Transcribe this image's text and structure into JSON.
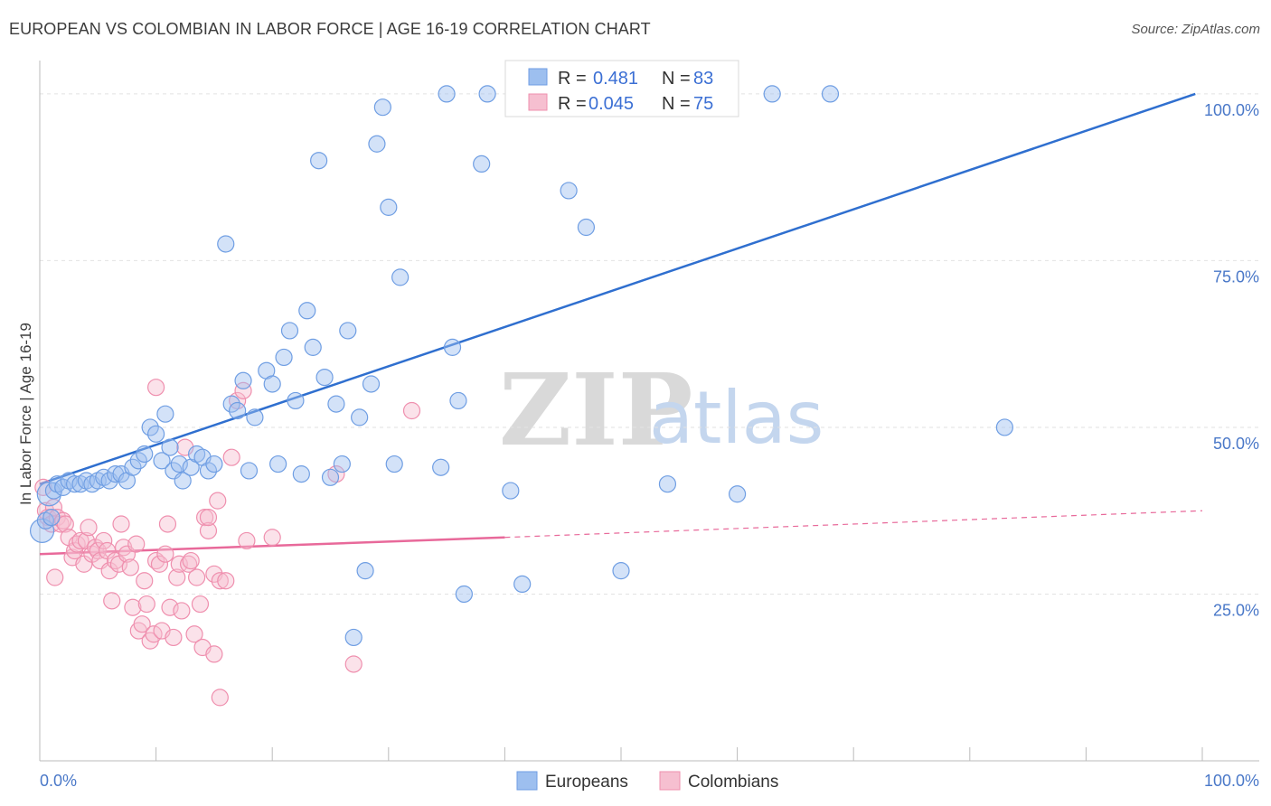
{
  "header": {
    "title": "EUROPEAN VS COLOMBIAN IN LABOR FORCE | AGE 16-19 CORRELATION CHART",
    "source": "Source: ZipAtlas.com"
  },
  "watermark": {
    "zip": "ZIP",
    "atlas": "atlas"
  },
  "colors": {
    "europeans_fill": "#9dbfef",
    "europeans_stroke": "#6f9ee3",
    "europeans_line": "#2f6fcf",
    "colombians_fill": "#f6bfd0",
    "colombians_stroke": "#ef8fae",
    "colombians_line": "#e8699a",
    "grid": "#e2e2e2",
    "axis": "#bbbbbb"
  },
  "stats": [
    {
      "r_label": "R =",
      "r_value": "0.481",
      "n_label": "N =",
      "n_value": "83"
    },
    {
      "r_label": "R =",
      "r_value": "0.045",
      "n_label": "N =",
      "n_value": "75"
    }
  ],
  "chart_data": {
    "type": "scatter",
    "title": "EUROPEAN VS COLOMBIAN IN LABOR FORCE | AGE 16-19 CORRELATION CHART",
    "xlabel": "",
    "ylabel": "In Labor Force | Age 16-19",
    "xlim": [
      0,
      100
    ],
    "ylim": [
      0,
      105
    ],
    "x_tick_labels": [
      "0.0%",
      "100.0%"
    ],
    "y_ticks": [
      25,
      50,
      75,
      100
    ],
    "y_tick_labels": [
      "25.0%",
      "50.0%",
      "75.0%",
      "100.0%"
    ],
    "legend": [
      "Europeans",
      "Colombians"
    ],
    "series": [
      {
        "name": "Europeans",
        "trend": {
          "x": [
            0,
            99.4
          ],
          "y": [
            41.5,
            100.0
          ]
        },
        "points": [
          [
            0.2,
            34.5
          ],
          [
            0.5,
            36.0
          ],
          [
            0.8,
            40.0
          ],
          [
            1.2,
            40.5
          ],
          [
            1.5,
            41.5
          ],
          [
            2.0,
            41.0
          ],
          [
            2.5,
            42.0
          ],
          [
            3.0,
            41.5
          ],
          [
            3.5,
            41.5
          ],
          [
            4.0,
            42.0
          ],
          [
            4.5,
            41.5
          ],
          [
            5.0,
            42.0
          ],
          [
            5.5,
            42.5
          ],
          [
            6.0,
            42.0
          ],
          [
            6.5,
            43.0
          ],
          [
            7.0,
            43.0
          ],
          [
            7.5,
            42.0
          ],
          [
            8.0,
            44.0
          ],
          [
            8.5,
            45.0
          ],
          [
            9.0,
            46.0
          ],
          [
            9.5,
            50.0
          ],
          [
            10.0,
            49.0
          ],
          [
            10.5,
            45.0
          ],
          [
            10.8,
            52.0
          ],
          [
            11.2,
            47.0
          ],
          [
            11.5,
            43.5
          ],
          [
            12.0,
            44.5
          ],
          [
            12.3,
            42.0
          ],
          [
            13.0,
            44.0
          ],
          [
            13.5,
            46.0
          ],
          [
            14.0,
            45.5
          ],
          [
            14.5,
            43.5
          ],
          [
            15.0,
            44.5
          ],
          [
            16.0,
            77.5
          ],
          [
            16.5,
            53.5
          ],
          [
            17.0,
            52.5
          ],
          [
            17.5,
            57.0
          ],
          [
            18.0,
            43.5
          ],
          [
            18.5,
            51.5
          ],
          [
            19.5,
            58.5
          ],
          [
            20.0,
            56.5
          ],
          [
            20.5,
            44.5
          ],
          [
            21.0,
            60.5
          ],
          [
            21.5,
            64.5
          ],
          [
            22.0,
            54.0
          ],
          [
            22.5,
            43.0
          ],
          [
            23.0,
            67.5
          ],
          [
            23.5,
            62.0
          ],
          [
            24.0,
            90.0
          ],
          [
            24.5,
            57.5
          ],
          [
            25.0,
            42.5
          ],
          [
            25.5,
            53.5
          ],
          [
            26.0,
            44.5
          ],
          [
            26.5,
            64.5
          ],
          [
            27.0,
            18.5
          ],
          [
            27.5,
            51.5
          ],
          [
            28.0,
            28.5
          ],
          [
            28.5,
            56.5
          ],
          [
            29.0,
            92.5
          ],
          [
            29.5,
            98.0
          ],
          [
            30.0,
            83.0
          ],
          [
            30.5,
            44.5
          ],
          [
            31.0,
            72.5
          ],
          [
            34.5,
            44.0
          ],
          [
            35.0,
            100.0
          ],
          [
            35.5,
            62.0
          ],
          [
            36.0,
            54.0
          ],
          [
            36.5,
            25.0
          ],
          [
            38.0,
            89.5
          ],
          [
            38.5,
            100.0
          ],
          [
            40.5,
            40.5
          ],
          [
            41.5,
            26.5
          ],
          [
            45.5,
            85.5
          ],
          [
            47.0,
            80.0
          ],
          [
            50.0,
            28.5
          ],
          [
            54.0,
            41.5
          ],
          [
            58.0,
            100.0
          ],
          [
            60.0,
            40.0
          ],
          [
            63.0,
            100.0
          ],
          [
            68.0,
            100.0
          ],
          [
            83.0,
            50.0
          ],
          [
            57.5,
            100.0
          ],
          [
            1.0,
            36.5
          ]
        ]
      },
      {
        "name": "Colombians",
        "trend": {
          "x": [
            0,
            40.0
          ],
          "y": [
            31.0,
            33.5
          ]
        },
        "trend_extension": {
          "x": [
            40.0,
            100.0
          ],
          "y": [
            33.5,
            37.5
          ]
        },
        "points": [
          [
            0.3,
            41.0
          ],
          [
            0.5,
            37.5
          ],
          [
            0.7,
            36.5
          ],
          [
            1.0,
            35.5
          ],
          [
            1.2,
            38.0
          ],
          [
            1.5,
            36.5
          ],
          [
            1.8,
            35.5
          ],
          [
            2.0,
            36.0
          ],
          [
            2.2,
            35.5
          ],
          [
            1.3,
            27.5
          ],
          [
            2.5,
            33.5
          ],
          [
            2.8,
            30.5
          ],
          [
            3.0,
            31.5
          ],
          [
            3.2,
            32.5
          ],
          [
            3.5,
            33.0
          ],
          [
            3.8,
            29.5
          ],
          [
            4.0,
            33.0
          ],
          [
            4.2,
            35.0
          ],
          [
            4.5,
            31.0
          ],
          [
            4.8,
            32.0
          ],
          [
            5.0,
            31.5
          ],
          [
            5.2,
            30.0
          ],
          [
            5.5,
            33.0
          ],
          [
            5.8,
            31.5
          ],
          [
            6.0,
            28.5
          ],
          [
            6.2,
            24.0
          ],
          [
            6.5,
            30.0
          ],
          [
            6.8,
            29.5
          ],
          [
            7.0,
            35.5
          ],
          [
            7.2,
            32.0
          ],
          [
            7.5,
            31.0
          ],
          [
            7.8,
            29.0
          ],
          [
            8.0,
            23.0
          ],
          [
            8.3,
            32.5
          ],
          [
            8.5,
            19.5
          ],
          [
            8.8,
            20.5
          ],
          [
            9.0,
            27.0
          ],
          [
            9.2,
            23.5
          ],
          [
            9.5,
            18.0
          ],
          [
            9.8,
            19.0
          ],
          [
            10.0,
            30.0
          ],
          [
            10.3,
            29.5
          ],
          [
            10.5,
            19.5
          ],
          [
            10.8,
            31.0
          ],
          [
            11.0,
            35.5
          ],
          [
            11.2,
            23.0
          ],
          [
            11.5,
            18.5
          ],
          [
            11.8,
            27.5
          ],
          [
            12.0,
            29.5
          ],
          [
            12.2,
            22.5
          ],
          [
            12.5,
            47.0
          ],
          [
            12.8,
            29.5
          ],
          [
            13.0,
            30.0
          ],
          [
            13.3,
            19.0
          ],
          [
            13.5,
            27.5
          ],
          [
            13.8,
            23.5
          ],
          [
            14.0,
            17.0
          ],
          [
            14.2,
            36.5
          ],
          [
            14.5,
            34.5
          ],
          [
            15.0,
            28.0
          ],
          [
            15.3,
            39.0
          ],
          [
            15.5,
            27.0
          ],
          [
            10.0,
            56.0
          ],
          [
            15.5,
            9.5
          ],
          [
            16.0,
            27.0
          ],
          [
            16.5,
            45.5
          ],
          [
            17.0,
            54.0
          ],
          [
            17.5,
            55.5
          ],
          [
            17.8,
            33.0
          ],
          [
            15.0,
            16.0
          ],
          [
            20.0,
            33.5
          ],
          [
            25.5,
            43.0
          ],
          [
            27.0,
            14.5
          ],
          [
            32.0,
            52.5
          ],
          [
            14.5,
            36.5
          ]
        ]
      }
    ]
  }
}
